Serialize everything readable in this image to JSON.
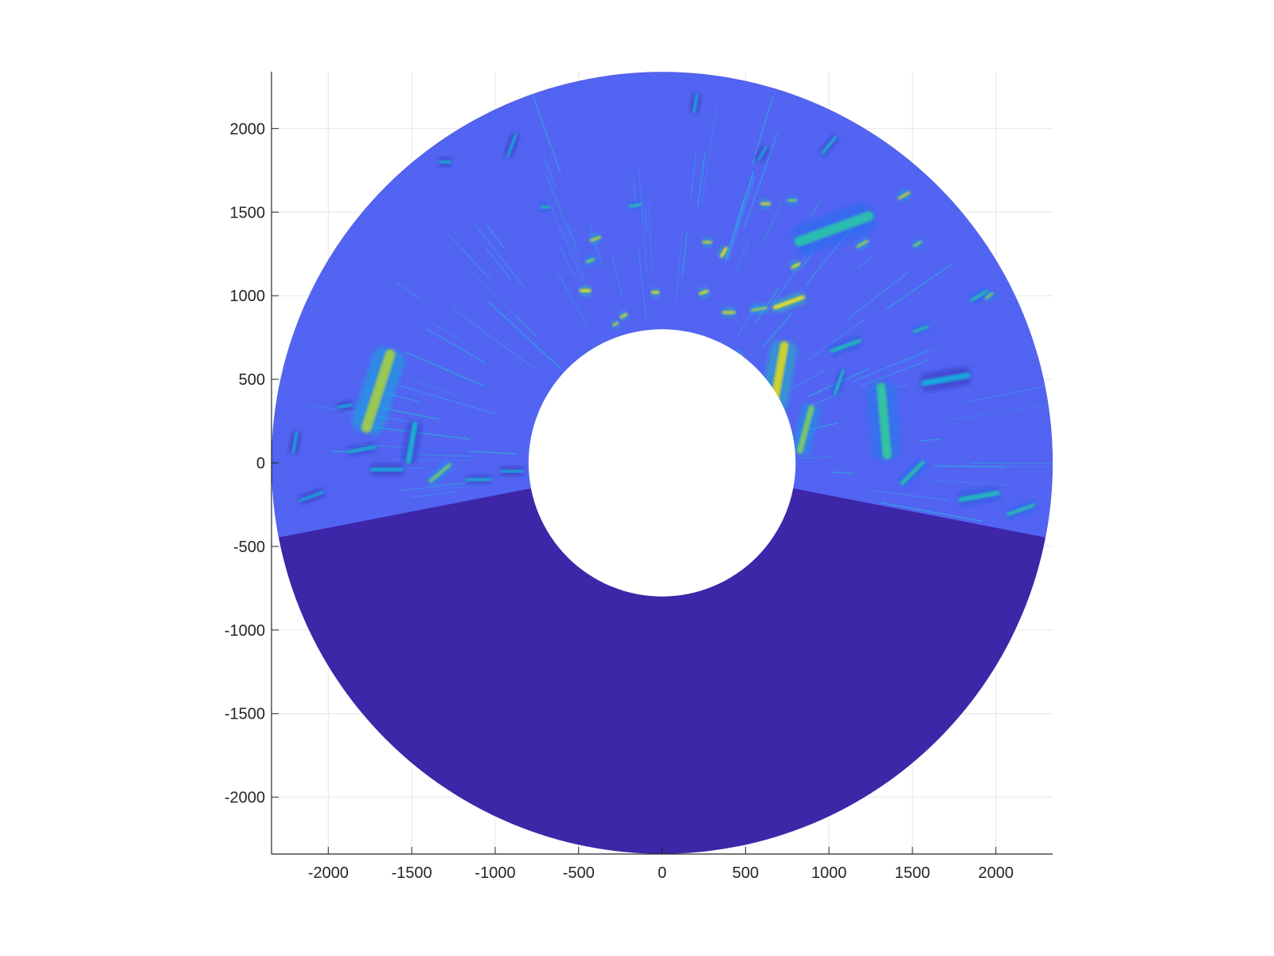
{
  "chart_data": {
    "type": "heatmap",
    "subtype": "polar-annulus radar intensity (PPI scan)",
    "title": "",
    "xlabel": "",
    "ylabel": "",
    "xlim": [
      -2340,
      2340
    ],
    "ylim": [
      -2340,
      2340
    ],
    "x_ticks": [
      -2000,
      -1500,
      -1000,
      -500,
      0,
      500,
      1000,
      1500,
      2000
    ],
    "y_ticks": [
      -2000,
      -1500,
      -1000,
      -500,
      0,
      500,
      1000,
      1500,
      2000
    ],
    "x_tick_labels": [
      "-2000",
      "-1500",
      "-1000",
      "-500",
      "0",
      "500",
      "1000",
      "1500",
      "2000"
    ],
    "y_tick_labels": [
      "-2000",
      "-1500",
      "-1000",
      "-500",
      "0",
      "500",
      "1000",
      "1500",
      "2000"
    ],
    "grid": true,
    "colormap": "parula",
    "annulus": {
      "inner_radius": 800,
      "outer_radius": 2340,
      "center": [
        0,
        0
      ]
    },
    "scan_sector_deg": [
      -11,
      191
    ],
    "no_data_color": "#3e26a8",
    "background_color": "#4a5cf0",
    "returns": [
      {
        "x": -1700,
        "y": 430,
        "length": 520,
        "angle_deg": 72,
        "intensity": 0.75
      },
      {
        "x": -1330,
        "y": -60,
        "length": 170,
        "angle_deg": 40,
        "intensity": 0.7
      },
      {
        "x": -1500,
        "y": 120,
        "length": 260,
        "angle_deg": 80,
        "intensity": 0.45
      },
      {
        "x": -1800,
        "y": 80,
        "length": 180,
        "angle_deg": 10,
        "intensity": 0.45
      },
      {
        "x": -1650,
        "y": -40,
        "length": 200,
        "angle_deg": 0,
        "intensity": 0.4
      },
      {
        "x": -2100,
        "y": -200,
        "length": 160,
        "angle_deg": 20,
        "intensity": 0.4
      },
      {
        "x": -1100,
        "y": -100,
        "length": 160,
        "angle_deg": 0,
        "intensity": 0.45
      },
      {
        "x": -900,
        "y": -50,
        "length": 140,
        "angle_deg": 0,
        "intensity": 0.4
      },
      {
        "x": -460,
        "y": 1030,
        "length": 70,
        "angle_deg": 0,
        "intensity": 0.95
      },
      {
        "x": -400,
        "y": 1340,
        "length": 70,
        "angle_deg": 20,
        "intensity": 0.8
      },
      {
        "x": -430,
        "y": 1210,
        "length": 60,
        "angle_deg": 20,
        "intensity": 0.7
      },
      {
        "x": -230,
        "y": 880,
        "length": 50,
        "angle_deg": 30,
        "intensity": 0.85
      },
      {
        "x": -280,
        "y": 830,
        "length": 40,
        "angle_deg": 30,
        "intensity": 0.8
      },
      {
        "x": -40,
        "y": 1020,
        "length": 50,
        "angle_deg": 0,
        "intensity": 0.9
      },
      {
        "x": 250,
        "y": 1020,
        "length": 60,
        "angle_deg": 20,
        "intensity": 0.9
      },
      {
        "x": 400,
        "y": 900,
        "length": 80,
        "angle_deg": 0,
        "intensity": 0.85
      },
      {
        "x": 580,
        "y": 920,
        "length": 100,
        "angle_deg": 10,
        "intensity": 0.75
      },
      {
        "x": 760,
        "y": 960,
        "length": 200,
        "angle_deg": 20,
        "intensity": 0.95
      },
      {
        "x": 370,
        "y": 1260,
        "length": 70,
        "angle_deg": 60,
        "intensity": 0.95
      },
      {
        "x": 270,
        "y": 1320,
        "length": 60,
        "angle_deg": 0,
        "intensity": 0.8
      },
      {
        "x": 800,
        "y": 1180,
        "length": 60,
        "angle_deg": 30,
        "intensity": 0.9
      },
      {
        "x": 620,
        "y": 1550,
        "length": 60,
        "angle_deg": 0,
        "intensity": 0.85
      },
      {
        "x": 780,
        "y": 1570,
        "length": 60,
        "angle_deg": 0,
        "intensity": 0.7
      },
      {
        "x": 1450,
        "y": 1600,
        "length": 80,
        "angle_deg": 30,
        "intensity": 0.8
      },
      {
        "x": 1200,
        "y": 1310,
        "length": 80,
        "angle_deg": 30,
        "intensity": 0.75
      },
      {
        "x": 1030,
        "y": 1400,
        "length": 500,
        "angle_deg": 20,
        "intensity": 0.55
      },
      {
        "x": 700,
        "y": 520,
        "length": 420,
        "angle_deg": 80,
        "intensity": 0.85
      },
      {
        "x": 860,
        "y": 200,
        "length": 300,
        "angle_deg": 75,
        "intensity": 0.7
      },
      {
        "x": 1330,
        "y": 250,
        "length": 460,
        "angle_deg": 95,
        "intensity": 0.6
      },
      {
        "x": 1500,
        "y": -60,
        "length": 200,
        "angle_deg": 45,
        "intensity": 0.55
      },
      {
        "x": 1900,
        "y": -200,
        "length": 250,
        "angle_deg": 10,
        "intensity": 0.5
      },
      {
        "x": 2150,
        "y": -280,
        "length": 180,
        "angle_deg": 20,
        "intensity": 0.55
      },
      {
        "x": 1900,
        "y": 1000,
        "length": 120,
        "angle_deg": 30,
        "intensity": 0.55
      },
      {
        "x": 1550,
        "y": 800,
        "length": 100,
        "angle_deg": 20,
        "intensity": 0.55
      },
      {
        "x": 1530,
        "y": 1310,
        "length": 60,
        "angle_deg": 30,
        "intensity": 0.7
      },
      {
        "x": 1100,
        "y": 700,
        "length": 200,
        "angle_deg": 20,
        "intensity": 0.5
      },
      {
        "x": 1060,
        "y": 480,
        "length": 160,
        "angle_deg": 70,
        "intensity": 0.5
      },
      {
        "x": 1700,
        "y": 500,
        "length": 300,
        "angle_deg": 10,
        "intensity": 0.4
      },
      {
        "x": 1000,
        "y": 1900,
        "length": 140,
        "angle_deg": 50,
        "intensity": 0.45
      },
      {
        "x": 600,
        "y": 1850,
        "length": 100,
        "angle_deg": 60,
        "intensity": 0.4
      },
      {
        "x": -160,
        "y": 1540,
        "length": 80,
        "angle_deg": 10,
        "intensity": 0.55
      },
      {
        "x": -700,
        "y": 1530,
        "length": 60,
        "angle_deg": 0,
        "intensity": 0.5
      },
      {
        "x": -1300,
        "y": 1800,
        "length": 80,
        "angle_deg": 0,
        "intensity": 0.4
      },
      {
        "x": 200,
        "y": 2150,
        "length": 120,
        "angle_deg": 80,
        "intensity": 0.4
      },
      {
        "x": -900,
        "y": 1900,
        "length": 150,
        "angle_deg": 70,
        "intensity": 0.4
      },
      {
        "x": -1900,
        "y": 340,
        "length": 100,
        "angle_deg": 10,
        "intensity": 0.4
      },
      {
        "x": -2200,
        "y": 120,
        "length": 140,
        "angle_deg": 80,
        "intensity": 0.4
      },
      {
        "x": 450,
        "y": 640,
        "length": 60,
        "angle_deg": 0,
        "intensity": 0.75
      },
      {
        "x": 1960,
        "y": 1000,
        "length": 60,
        "angle_deg": 40,
        "intensity": 0.7
      }
    ]
  }
}
